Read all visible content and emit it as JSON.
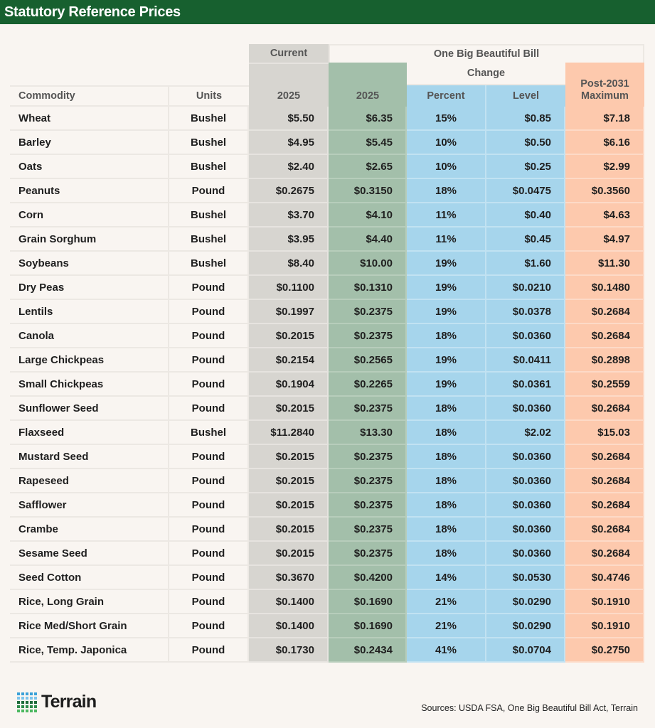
{
  "title": "Statutory Reference Prices",
  "colors": {
    "title_bar": "#17602f",
    "current": "#d7d5d0",
    "obbb_2025": "#a3bfaa",
    "change": "#a6d5ec",
    "maximum": "#fdc9ad"
  },
  "headers": {
    "group_current": "Current",
    "group_obbb": "One Big Beautiful Bill",
    "group_change": "Change",
    "commodity": "Commodity",
    "units": "Units",
    "current_2025": "2025",
    "obbb_2025": "2025",
    "percent": "Percent",
    "level": "Level",
    "maximum": "Post-2031 Maximum"
  },
  "chart_data": {
    "type": "table",
    "title": "Statutory Reference Prices",
    "columns": [
      "Commodity",
      "Units",
      "Current 2025",
      "One Big Beautiful Bill 2025",
      "Change Percent",
      "Change Level",
      "Post-2031 Maximum"
    ],
    "rows": [
      [
        "Wheat",
        "Bushel",
        "$5.50",
        "$6.35",
        "15%",
        "$0.85",
        "$7.18"
      ],
      [
        "Barley",
        "Bushel",
        "$4.95",
        "$5.45",
        "10%",
        "$0.50",
        "$6.16"
      ],
      [
        "Oats",
        "Bushel",
        "$2.40",
        "$2.65",
        "10%",
        "$0.25",
        "$2.99"
      ],
      [
        "Peanuts",
        "Pound",
        "$0.2675",
        "$0.3150",
        "18%",
        "$0.0475",
        "$0.3560"
      ],
      [
        "Corn",
        "Bushel",
        "$3.70",
        "$4.10",
        "11%",
        "$0.40",
        "$4.63"
      ],
      [
        "Grain Sorghum",
        "Bushel",
        "$3.95",
        "$4.40",
        "11%",
        "$0.45",
        "$4.97"
      ],
      [
        "Soybeans",
        "Bushel",
        "$8.40",
        "$10.00",
        "19%",
        "$1.60",
        "$11.30"
      ],
      [
        "Dry Peas",
        "Pound",
        "$0.1100",
        "$0.1310",
        "19%",
        "$0.0210",
        "$0.1480"
      ],
      [
        "Lentils",
        "Pound",
        "$0.1997",
        "$0.2375",
        "19%",
        "$0.0378",
        "$0.2684"
      ],
      [
        "Canola",
        "Pound",
        "$0.2015",
        "$0.2375",
        "18%",
        "$0.0360",
        "$0.2684"
      ],
      [
        "Large Chickpeas",
        "Pound",
        "$0.2154",
        "$0.2565",
        "19%",
        "$0.0411",
        "$0.2898"
      ],
      [
        "Small Chickpeas",
        "Pound",
        "$0.1904",
        "$0.2265",
        "19%",
        "$0.0361",
        "$0.2559"
      ],
      [
        "Sunflower Seed",
        "Pound",
        "$0.2015",
        "$0.2375",
        "18%",
        "$0.0360",
        "$0.2684"
      ],
      [
        "Flaxseed",
        "Bushel",
        "$11.2840",
        "$13.30",
        "18%",
        "$2.02",
        "$15.03"
      ],
      [
        "Mustard Seed",
        "Pound",
        "$0.2015",
        "$0.2375",
        "18%",
        "$0.0360",
        "$0.2684"
      ],
      [
        "Rapeseed",
        "Pound",
        "$0.2015",
        "$0.2375",
        "18%",
        "$0.0360",
        "$0.2684"
      ],
      [
        "Safflower",
        "Pound",
        "$0.2015",
        "$0.2375",
        "18%",
        "$0.0360",
        "$0.2684"
      ],
      [
        "Crambe",
        "Pound",
        "$0.2015",
        "$0.2375",
        "18%",
        "$0.0360",
        "$0.2684"
      ],
      [
        "Sesame Seed",
        "Pound",
        "$0.2015",
        "$0.2375",
        "18%",
        "$0.0360",
        "$0.2684"
      ],
      [
        "Seed Cotton",
        "Pound",
        "$0.3670",
        "$0.4200",
        "14%",
        "$0.0530",
        "$0.4746"
      ],
      [
        "Rice, Long Grain",
        "Pound",
        "$0.1400",
        "$0.1690",
        "21%",
        "$0.0290",
        "$0.1910"
      ],
      [
        "Rice Med/Short Grain",
        "Pound",
        "$0.1400",
        "$0.1690",
        "21%",
        "$0.0290",
        "$0.1910"
      ],
      [
        "Rice, Temp. Japonica",
        "Pound",
        "$0.1730",
        "$0.2434",
        "41%",
        "$0.0704",
        "$0.2750"
      ]
    ]
  },
  "footer": {
    "logo": "Terrain",
    "sources": "Sources: USDA FSA, One Big Beautiful Bill Act, Terrain"
  }
}
